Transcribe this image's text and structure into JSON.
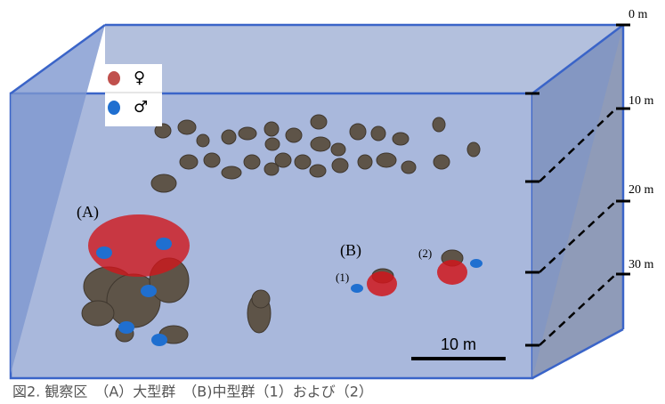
{
  "depth_labels": [
    "0 m",
    "10 m",
    "20 m",
    "30 m"
  ],
  "legend": {
    "female": "♀",
    "male": "♂"
  },
  "groups": {
    "a": "(A)",
    "b": "(B)",
    "b1": "(1)",
    "b2": "(2)"
  },
  "scale_bar": "10 m",
  "caption": "図2. 観察区　（A）大型群　（B)中型群（1）および（2）"
}
